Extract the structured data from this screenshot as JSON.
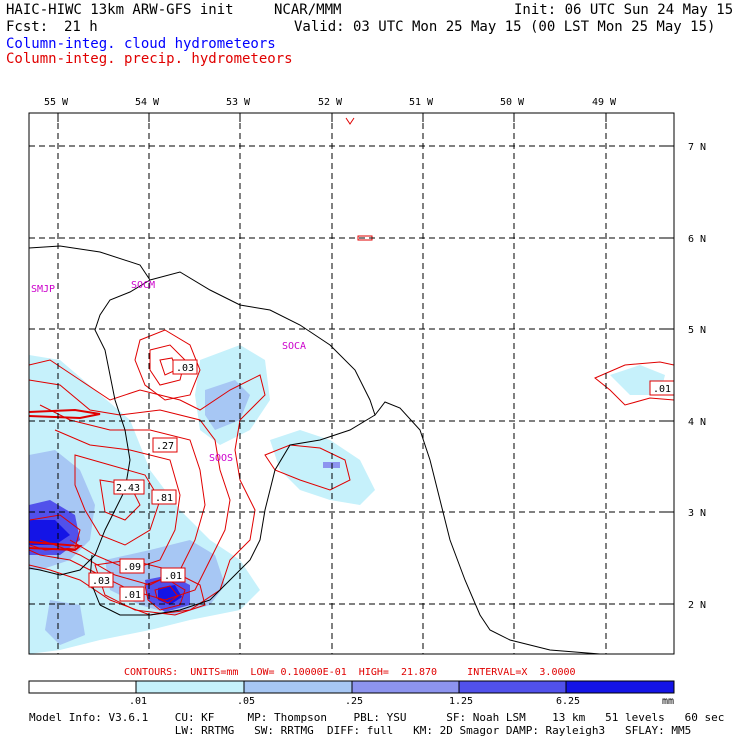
{
  "header": {
    "model": "HAIC-HIWC 13km ARW-GFS init",
    "org": "NCAR/MMM",
    "init": "Init: 06 UTC Sun 24 May 15",
    "fcst_label": "Fcst:",
    "fcst_value": "21 h",
    "valid": "Valid: 03 UTC Mon 25 May 15 (00 LST Mon 25 May 15)",
    "field1": "Column-integ. cloud hydrometeors",
    "field2": "Column-integ. precip. hydrometeors"
  },
  "map": {
    "lon_labels": [
      "55 W",
      "54 W",
      "53 W",
      "52 W",
      "51 W",
      "50 W",
      "49 W"
    ],
    "lat_labels": [
      "7 N",
      "6 N",
      "5 N",
      "4 N",
      "3 N",
      "2 N"
    ],
    "stations": [
      "SMJP",
      "SOCM",
      "SOCA",
      "SOOS"
    ],
    "contour_labels": [
      ".03",
      ".27",
      "2.43",
      ".81",
      ".09",
      ".01",
      ".03",
      ".01",
      ".01"
    ]
  },
  "contours_info": "CONTOURS:  UNITS=mm  LOW= 0.10000E-01  HIGH=  21.870     INTERVAL=X  3.0000",
  "colorbar": {
    "ticks": [
      ".01",
      ".05",
      ".25",
      "1.25",
      "6.25"
    ],
    "units": "mm",
    "colors": [
      "#ffffff",
      "#c6f1fb",
      "#a7c7f4",
      "#8d94ef",
      "#5151eb",
      "#1414e6"
    ]
  },
  "footer": {
    "line1": "Model Info: V3.6.1    CU: KF     MP: Thompson    PBL: YSU      SF: Noah LSM    13 km   51 levels   60 sec",
    "line2": "                      LW: RRTMG   SW: RRTMG  DIFF: full   KM: 2D Smagor DAMP: Rayleigh3   SFLAY: MM5"
  }
}
